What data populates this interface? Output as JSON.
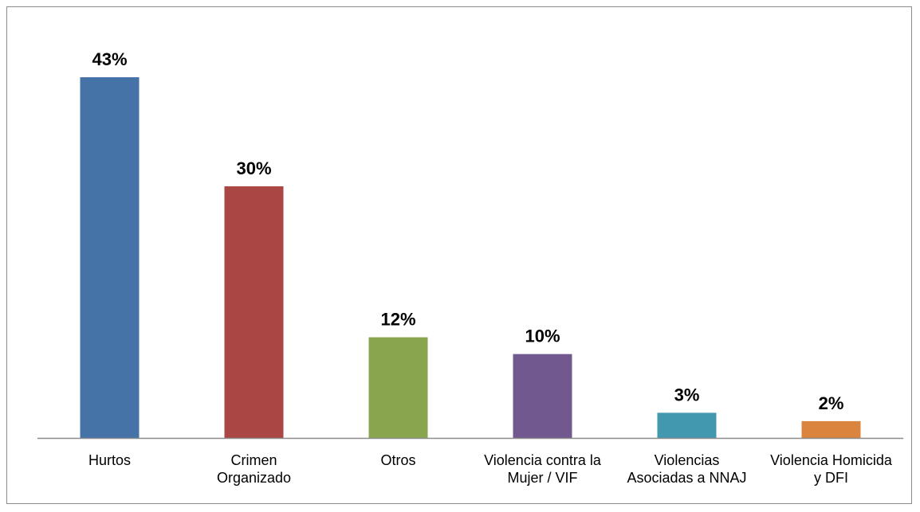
{
  "chart_data": {
    "type": "bar",
    "title": "",
    "xlabel": "",
    "ylabel": "",
    "ylim": [
      0,
      45
    ],
    "grid": false,
    "legend": "none",
    "categories": [
      [
        "Hurtos"
      ],
      [
        "Crimen",
        "Organizado"
      ],
      [
        "Otros"
      ],
      [
        "Violencia contra la",
        "Mujer / VIF"
      ],
      [
        "Violencias",
        "Asociadas a NNAJ"
      ],
      [
        "Violencia Homicida",
        "y DFI"
      ]
    ],
    "values": [
      43,
      30,
      12,
      10,
      3,
      2
    ],
    "data_labels": [
      "43%",
      "30%",
      "12%",
      "10%",
      "3%",
      "2%"
    ],
    "colors": [
      "#4572a7",
      "#aa4643",
      "#89a54e",
      "#71588f",
      "#4198af",
      "#db843d"
    ],
    "axis_color": "#8c8c8c"
  }
}
